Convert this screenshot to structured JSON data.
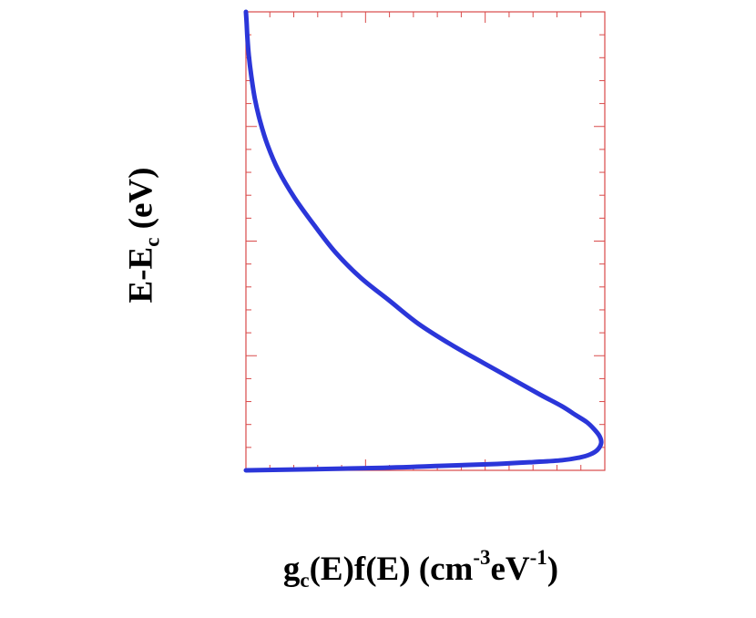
{
  "chart_data": {
    "type": "line",
    "title": "",
    "orientation": "energy on vertical axis, distribution on horizontal axis",
    "xlabel": {
      "base1": "g",
      "sub1": "c",
      "base2": "(E)f(E) (cm",
      "sup1": "-3",
      "base3": "eV",
      "sup2": "-1",
      "base4": ")"
    },
    "ylabel": {
      "base1": "E-E",
      "sub1": "c",
      "base2": " (eV)"
    },
    "xlim": [
      0,
      1
    ],
    "ylim": [
      0,
      10
    ],
    "x_unit": "relative",
    "y_unit": "relative (kT = 1 unit)",
    "tick_labels_shown": false,
    "grid": false,
    "legend": "none",
    "colors": {
      "series": "#2b36d9",
      "axes": "#d94a4a",
      "text": "#000000"
    },
    "series": [
      {
        "x": [
          0.0,
          0.35,
          0.55,
          0.7,
          0.8,
          0.88,
          0.93,
          0.96,
          0.98,
          0.99,
          0.985,
          0.97,
          0.95,
          0.92,
          0.88,
          0.82,
          0.74,
          0.66,
          0.57,
          0.48,
          0.4,
          0.32,
          0.25,
          0.19,
          0.135,
          0.09,
          0.06,
          0.04,
          0.025,
          0.015,
          0.008,
          0.004,
          0.002,
          0.0
        ],
        "y": [
          0.0,
          0.05,
          0.1,
          0.14,
          0.18,
          0.22,
          0.28,
          0.35,
          0.45,
          0.6,
          0.75,
          0.9,
          1.05,
          1.2,
          1.4,
          1.65,
          2.0,
          2.35,
          2.75,
          3.2,
          3.7,
          4.2,
          4.75,
          5.35,
          5.95,
          6.55,
          7.1,
          7.6,
          8.1,
          8.6,
          9.05,
          9.45,
          9.75,
          10.0
        ]
      }
    ]
  }
}
